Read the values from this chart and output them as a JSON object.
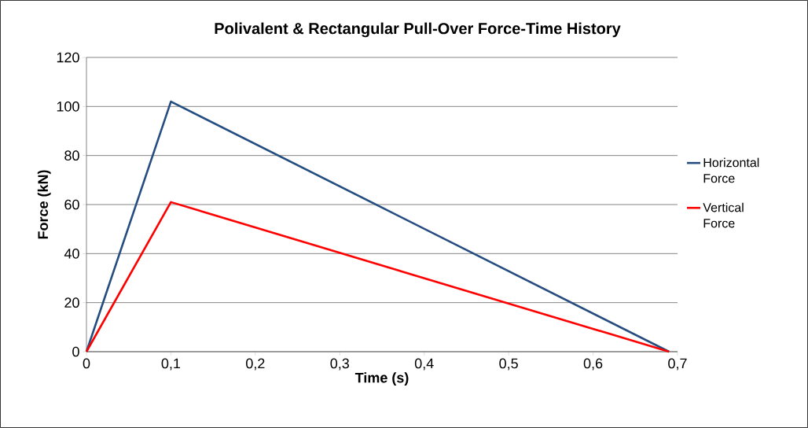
{
  "chart_data": {
    "type": "line",
    "title": "Polivalent & Rectangular Pull-Over Force-Time History",
    "xlabel": "Time (s)",
    "ylabel": "Force (kN)",
    "x": [
      0,
      0.1,
      0.69
    ],
    "series": [
      {
        "name": "Horizontal Force",
        "color": "#254d7f",
        "values": [
          0,
          102,
          0
        ]
      },
      {
        "name": "Vertical Force",
        "color": "#ff0000",
        "values": [
          0,
          61,
          0
        ]
      }
    ],
    "xlim": [
      0,
      0.7
    ],
    "ylim": [
      0,
      120
    ],
    "xticks": [
      0,
      {
        "value": 0.1,
        "label": "0,1"
      },
      {
        "value": 0.2,
        "label": "0,2"
      },
      {
        "value": 0.3,
        "label": "0,3"
      },
      {
        "value": 0.4,
        "label": "0,4"
      },
      {
        "value": 0.5,
        "label": "0,5"
      },
      {
        "value": 0.6,
        "label": "0,6"
      },
      {
        "value": 0.7,
        "label": "0,7"
      }
    ],
    "yticks": [
      0,
      20,
      40,
      60,
      80,
      100,
      120
    ],
    "grid": "y",
    "legend": "right",
    "marker": "none",
    "line_style": "solid"
  }
}
